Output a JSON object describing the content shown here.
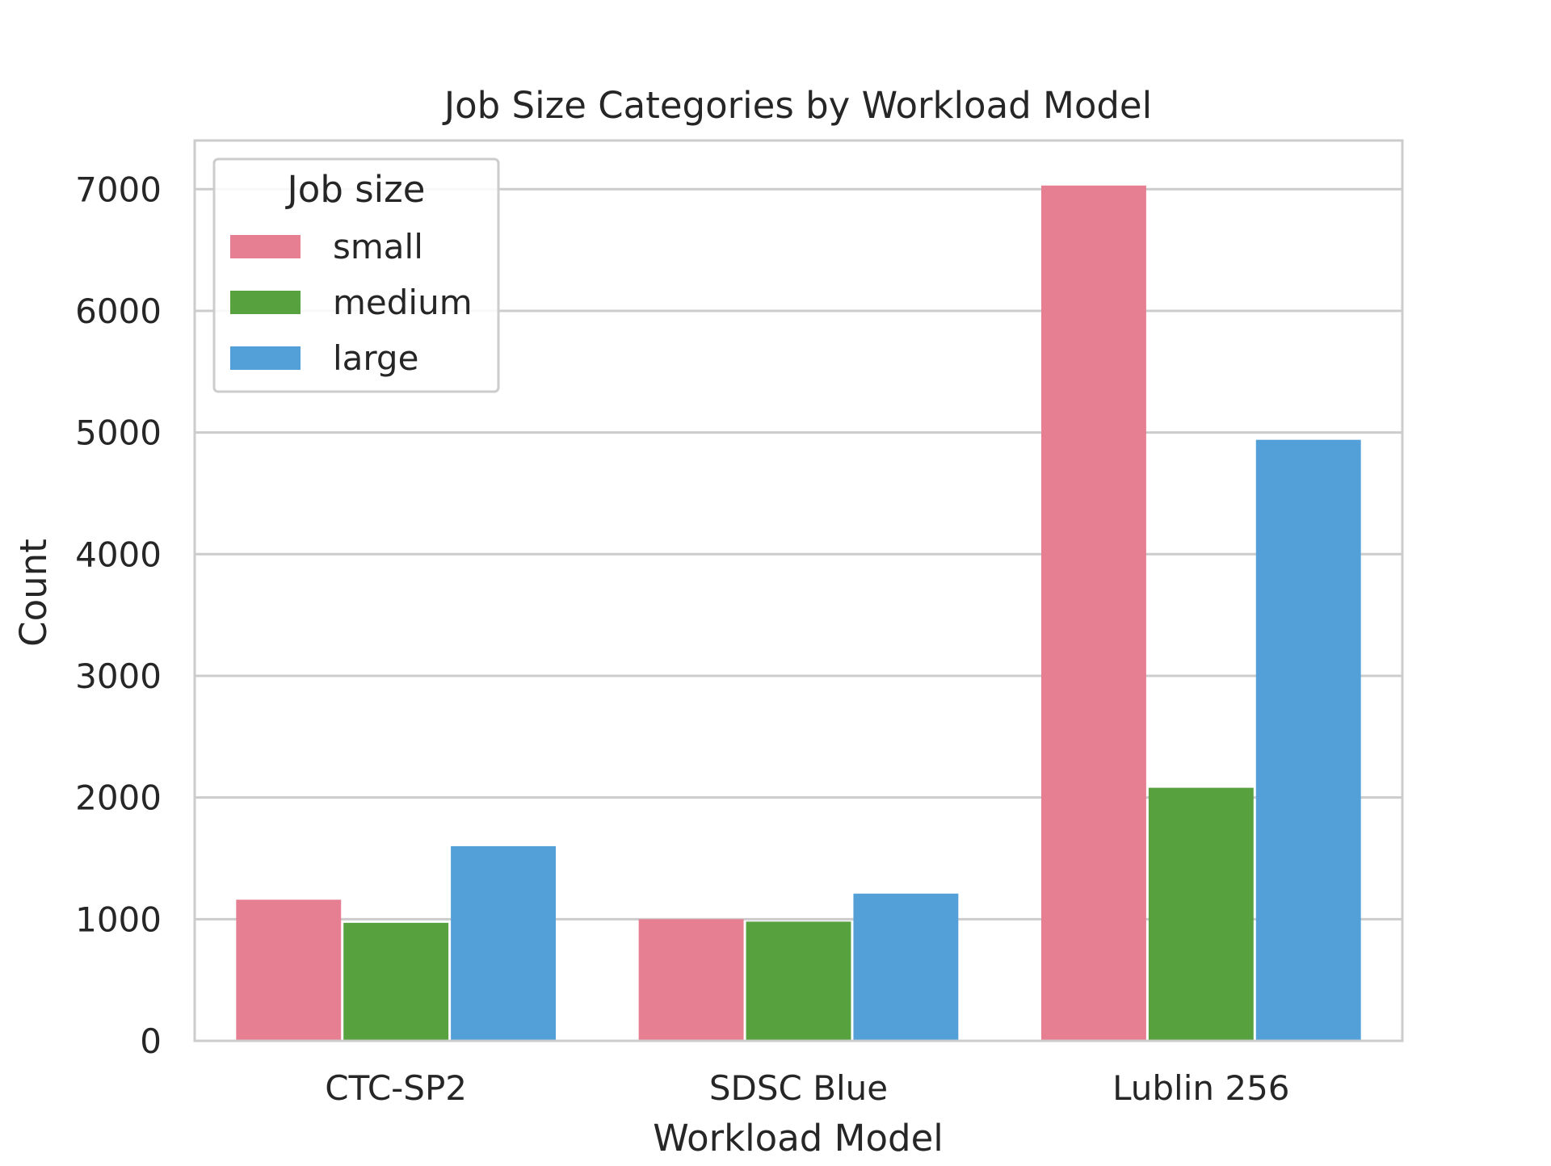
{
  "chart_data": {
    "type": "bar",
    "title": "Job Size Categories by Workload Model",
    "xlabel": "Workload Model",
    "ylabel": "Count",
    "categories": [
      "CTC-SP2",
      "SDSC Blue",
      "Lublin 256"
    ],
    "ylim": [
      0,
      7400
    ],
    "yticks": [
      0,
      1000,
      2000,
      3000,
      4000,
      5000,
      6000,
      7000
    ],
    "grid": true,
    "legend": {
      "title": "Job size",
      "placement": "top-left"
    },
    "series": [
      {
        "name": "small",
        "color": "#e77f92",
        "values": [
          1160,
          1000,
          7030
        ]
      },
      {
        "name": "medium",
        "color": "#58a13f",
        "values": [
          970,
          980,
          2080
        ]
      },
      {
        "name": "large",
        "color": "#52a0d7",
        "values": [
          1600,
          1210,
          4940
        ]
      }
    ]
  }
}
